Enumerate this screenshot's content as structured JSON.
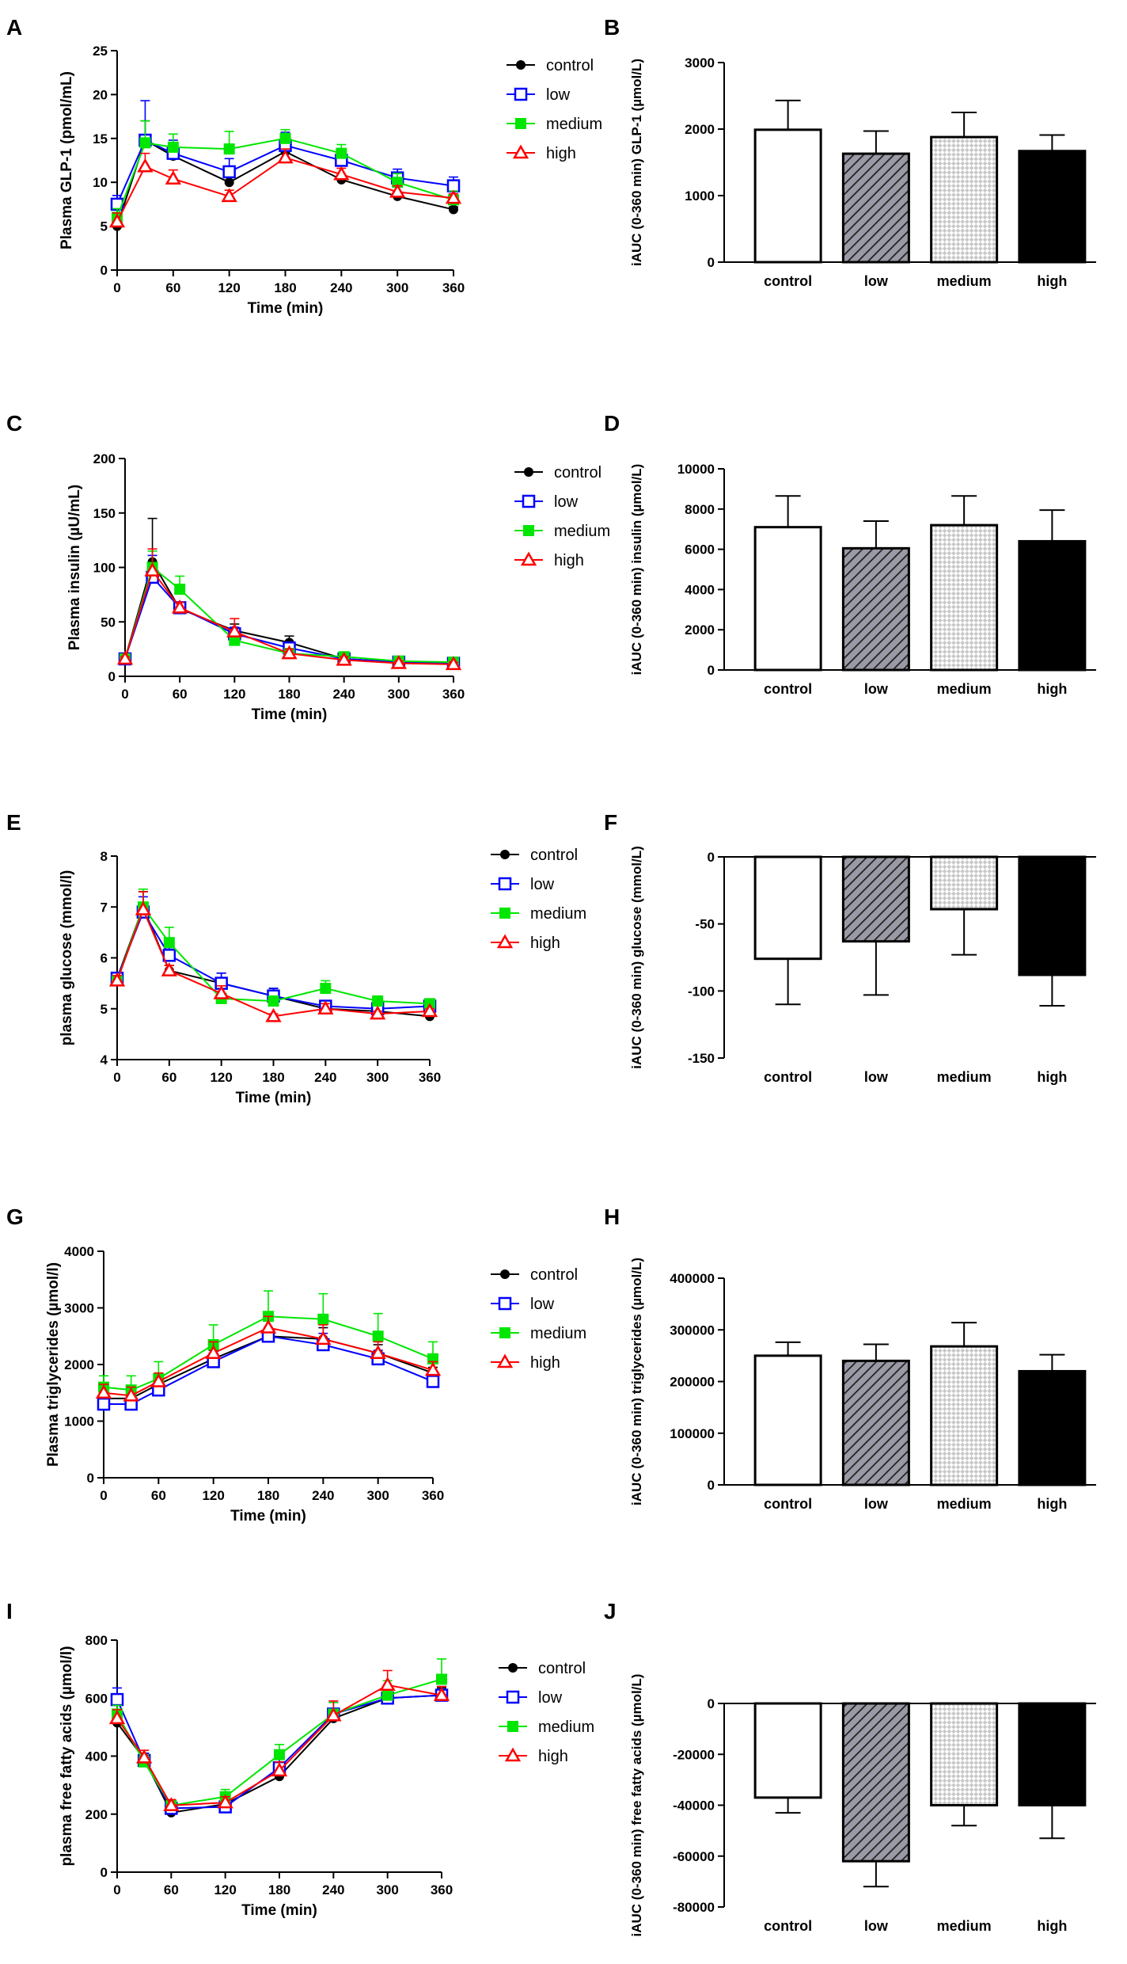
{
  "colors": {
    "control": "#000000",
    "low": "#0000ff",
    "medium": "#00e600",
    "high": "#ff0000",
    "axis": "#000000",
    "bar_low_fill": "#9a9aa6",
    "bar_medium_fill": "#c8c8c8"
  },
  "legend": [
    "control",
    "low",
    "medium",
    "high"
  ],
  "chart_data": [
    {
      "id": "A",
      "panel_label": "A",
      "type": "line",
      "ylabel": "Plasma GLP-1 (pmol/mL)",
      "xlabel": "Time (min)",
      "x": [
        0,
        30,
        60,
        120,
        180,
        240,
        300,
        360
      ],
      "xticks": [
        0,
        60,
        120,
        180,
        240,
        300,
        360
      ],
      "ylim": [
        0,
        25
      ],
      "yticks": [
        0,
        5,
        10,
        15,
        20,
        25
      ],
      "legend": [
        "control",
        "low",
        "medium",
        "high"
      ],
      "series": [
        {
          "name": "control",
          "values": [
            5.0,
            14.8,
            13.0,
            10.0,
            13.5,
            10.3,
            8.4,
            6.9
          ],
          "err": [
            0.5,
            2.2,
            1.0,
            0.8,
            1.0,
            0.5,
            0.5,
            0.3
          ]
        },
        {
          "name": "low",
          "values": [
            7.5,
            14.8,
            13.3,
            11.2,
            14.2,
            12.5,
            10.5,
            9.6
          ],
          "err": [
            1.0,
            4.5,
            1.5,
            1.5,
            1.5,
            1.0,
            1.0,
            1.0
          ]
        },
        {
          "name": "medium",
          "values": [
            6.0,
            14.5,
            14.0,
            13.8,
            15.0,
            13.3,
            10.0,
            8.0
          ],
          "err": [
            1.0,
            2.5,
            1.5,
            2.0,
            1.0,
            1.0,
            1.0,
            1.0
          ]
        },
        {
          "name": "high",
          "values": [
            5.5,
            11.8,
            10.4,
            8.4,
            12.8,
            10.9,
            8.9,
            8.2
          ],
          "err": [
            1.0,
            1.5,
            1.0,
            0.7,
            1.0,
            0.7,
            0.7,
            0.5
          ]
        }
      ]
    },
    {
      "id": "B",
      "panel_label": "B",
      "type": "bar",
      "ylabel": "iAUC (0-360 min) GLP-1 (µmol/L)",
      "xlabel": "",
      "categories": [
        "control",
        "low",
        "medium",
        "high"
      ],
      "values": [
        1990,
        1630,
        1880,
        1670
      ],
      "err": [
        440,
        340,
        370,
        240
      ],
      "ylim": [
        0,
        3000
      ],
      "yticks": [
        0,
        1000,
        2000,
        3000
      ]
    },
    {
      "id": "C",
      "panel_label": "C",
      "type": "line",
      "ylabel": "Plasma insulin (µU/mL)",
      "xlabel": "Time (min)",
      "x": [
        0,
        30,
        60,
        120,
        180,
        240,
        300,
        360
      ],
      "xticks": [
        0,
        60,
        120,
        180,
        240,
        300,
        360
      ],
      "ylim": [
        0,
        200
      ],
      "yticks": [
        0,
        50,
        100,
        150,
        200
      ],
      "legend": [
        "control",
        "low",
        "medium",
        "high"
      ],
      "series": [
        {
          "name": "control",
          "values": [
            16,
            105,
            62,
            42,
            31,
            16,
            13,
            12
          ],
          "err": [
            2,
            40,
            5,
            6,
            6,
            3,
            2,
            2
          ]
        },
        {
          "name": "low",
          "values": [
            16,
            91,
            63,
            39,
            26,
            16,
            13,
            12
          ],
          "err": [
            2,
            20,
            5,
            6,
            5,
            3,
            2,
            2
          ]
        },
        {
          "name": "medium",
          "values": [
            16,
            100,
            80,
            33,
            21,
            18,
            14,
            13
          ],
          "err": [
            2,
            15,
            12,
            6,
            4,
            3,
            2,
            2
          ]
        },
        {
          "name": "high",
          "values": [
            16,
            97,
            63,
            41,
            21,
            15,
            12,
            11
          ],
          "err": [
            2,
            20,
            5,
            12,
            4,
            3,
            2,
            2
          ]
        }
      ]
    },
    {
      "id": "D",
      "panel_label": "D",
      "type": "bar",
      "ylabel": "iAUC (0-360 min) insulin (µmol/L)",
      "xlabel": "",
      "categories": [
        "control",
        "low",
        "medium",
        "high"
      ],
      "values": [
        7100,
        6050,
        7200,
        6400
      ],
      "err": [
        1550,
        1350,
        1450,
        1550
      ],
      "ylim": [
        0,
        10000
      ],
      "yticks": [
        0,
        2000,
        4000,
        6000,
        8000,
        10000
      ]
    },
    {
      "id": "E",
      "panel_label": "E",
      "type": "line",
      "ylabel": "plasma glucose (mmol/l)",
      "xlabel": "Time (min)",
      "x": [
        0,
        30,
        60,
        120,
        180,
        240,
        300,
        360
      ],
      "xticks": [
        0,
        60,
        120,
        180,
        240,
        300,
        360
      ],
      "ylim": [
        4,
        8
      ],
      "yticks": [
        4,
        5,
        6,
        7,
        8
      ],
      "legend": [
        "control",
        "low",
        "medium",
        "high"
      ],
      "series": [
        {
          "name": "control",
          "values": [
            5.6,
            7.0,
            5.75,
            5.5,
            5.25,
            5.0,
            4.95,
            4.85
          ],
          "err": [
            0.1,
            0.3,
            0.1,
            0.2,
            0.15,
            0.1,
            0.1,
            0.05
          ]
        },
        {
          "name": "low",
          "values": [
            5.6,
            6.9,
            6.05,
            5.5,
            5.25,
            5.05,
            5.0,
            5.05
          ],
          "err": [
            0.1,
            0.3,
            0.15,
            0.2,
            0.15,
            0.1,
            0.1,
            0.05
          ]
        },
        {
          "name": "medium",
          "values": [
            5.55,
            7.0,
            6.3,
            5.2,
            5.15,
            5.4,
            5.15,
            5.1
          ],
          "err": [
            0.1,
            0.35,
            0.3,
            0.1,
            0.1,
            0.15,
            0.1,
            0.05
          ]
        },
        {
          "name": "high",
          "values": [
            5.55,
            6.95,
            5.75,
            5.3,
            4.85,
            5.0,
            4.9,
            4.95
          ],
          "err": [
            0.1,
            0.35,
            0.1,
            0.15,
            0.05,
            0.1,
            0.05,
            0.05
          ]
        }
      ]
    },
    {
      "id": "F",
      "panel_label": "F",
      "type": "bar",
      "ylabel": "iAUC (0-360 min) glucose (mmol/L)",
      "xlabel": "",
      "categories": [
        "control",
        "low",
        "medium",
        "high"
      ],
      "values": [
        -76,
        -63,
        -39,
        -88
      ],
      "err": [
        34,
        40,
        34,
        23
      ],
      "ylim": [
        -150,
        0
      ],
      "yticks": [
        -150,
        -100,
        -50,
        0
      ],
      "xaxis_bottom": true
    },
    {
      "id": "G",
      "panel_label": "G",
      "type": "line",
      "ylabel": "Plasma triglycerides (µmol/l)",
      "xlabel": "Time (min)",
      "x": [
        0,
        30,
        60,
        120,
        180,
        240,
        300,
        360
      ],
      "xticks": [
        0,
        60,
        120,
        180,
        240,
        300,
        360
      ],
      "ylim": [
        0,
        4000
      ],
      "yticks": [
        0,
        1000,
        2000,
        3000,
        4000
      ],
      "legend": [
        "control",
        "low",
        "medium",
        "high"
      ],
      "series": [
        {
          "name": "control",
          "values": [
            1400,
            1400,
            1650,
            2100,
            2500,
            2450,
            2200,
            1850
          ],
          "err": [
            100,
            150,
            150,
            150,
            150,
            200,
            150,
            100
          ]
        },
        {
          "name": "low",
          "values": [
            1300,
            1300,
            1550,
            2050,
            2500,
            2350,
            2100,
            1700
          ],
          "err": [
            100,
            150,
            150,
            150,
            150,
            200,
            150,
            100
          ]
        },
        {
          "name": "medium",
          "values": [
            1600,
            1550,
            1750,
            2350,
            2850,
            2800,
            2500,
            2100
          ],
          "err": [
            200,
            250,
            300,
            350,
            450,
            450,
            400,
            300
          ]
        },
        {
          "name": "high",
          "values": [
            1500,
            1450,
            1700,
            2200,
            2650,
            2450,
            2200,
            1900
          ],
          "err": [
            150,
            150,
            150,
            200,
            200,
            250,
            200,
            150
          ]
        }
      ]
    },
    {
      "id": "H",
      "panel_label": "H",
      "type": "bar",
      "ylabel": "iAUC (0-360 min) triglycerides (µmol/L)",
      "xlabel": "",
      "categories": [
        "control",
        "low",
        "medium",
        "high"
      ],
      "values": [
        250000,
        240000,
        268000,
        220000
      ],
      "err": [
        26000,
        32000,
        46000,
        32000
      ],
      "ylim": [
        0,
        400000
      ],
      "yticks": [
        0,
        100000,
        200000,
        300000,
        400000
      ]
    },
    {
      "id": "I",
      "panel_label": "I",
      "type": "line",
      "ylabel": "plasma free fatty acids (µmol/l)",
      "xlabel": "Time (min)",
      "x": [
        0,
        30,
        60,
        120,
        180,
        240,
        300,
        360
      ],
      "xticks": [
        0,
        60,
        120,
        180,
        240,
        300,
        360
      ],
      "ylim": [
        0,
        800
      ],
      "yticks": [
        0,
        200,
        400,
        600,
        800
      ],
      "legend": [
        "control",
        "low",
        "medium",
        "high"
      ],
      "series": [
        {
          "name": "control",
          "values": [
            515,
            390,
            205,
            235,
            330,
            530,
            600,
            610
          ],
          "err": [
            20,
            20,
            15,
            15,
            20,
            30,
            30,
            25
          ]
        },
        {
          "name": "low",
          "values": [
            595,
            385,
            220,
            225,
            360,
            545,
            600,
            610
          ],
          "err": [
            40,
            25,
            20,
            20,
            30,
            40,
            30,
            30
          ]
        },
        {
          "name": "medium",
          "values": [
            545,
            380,
            230,
            260,
            405,
            545,
            610,
            665
          ],
          "err": [
            30,
            25,
            20,
            25,
            35,
            40,
            50,
            70
          ]
        },
        {
          "name": "high",
          "values": [
            530,
            395,
            230,
            240,
            350,
            540,
            645,
            610
          ],
          "err": [
            30,
            25,
            20,
            20,
            30,
            50,
            50,
            30
          ]
        }
      ]
    },
    {
      "id": "J",
      "panel_label": "J",
      "type": "bar",
      "ylabel": "iAUC (0-360 min) free fatty acids (µmol/L)",
      "xlabel": "",
      "categories": [
        "control",
        "low",
        "medium",
        "high"
      ],
      "values": [
        -37000,
        -62000,
        -40000,
        -40000
      ],
      "err": [
        6000,
        10000,
        8000,
        13000
      ],
      "ylim": [
        -80000,
        0
      ],
      "yticks": [
        -80000,
        -60000,
        -40000,
        -20000,
        0
      ],
      "xaxis_bottom": true
    }
  ]
}
